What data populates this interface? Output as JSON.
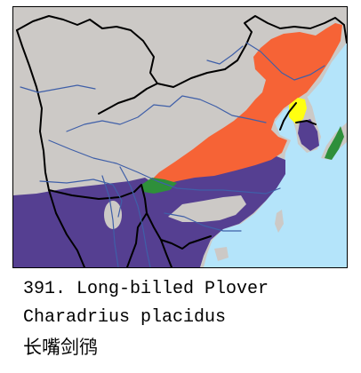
{
  "caption": {
    "number": "391.",
    "common_name": "Long-billed Plover",
    "scientific_name": "Charadrius placidus",
    "chinese_name": "长嘴剑鸻"
  },
  "colors": {
    "sea": "#b4e4fa",
    "land": "#ccc9c6",
    "border": "#000000",
    "river": "#3f5fa8",
    "breeding": "#f66336",
    "wintering": "#553f91",
    "resident": "#2e8f3a",
    "passage": "#ffff11"
  },
  "legend_meaning": {
    "breeding": "orange",
    "wintering": "purple",
    "resident": "green",
    "passage": "yellow"
  }
}
